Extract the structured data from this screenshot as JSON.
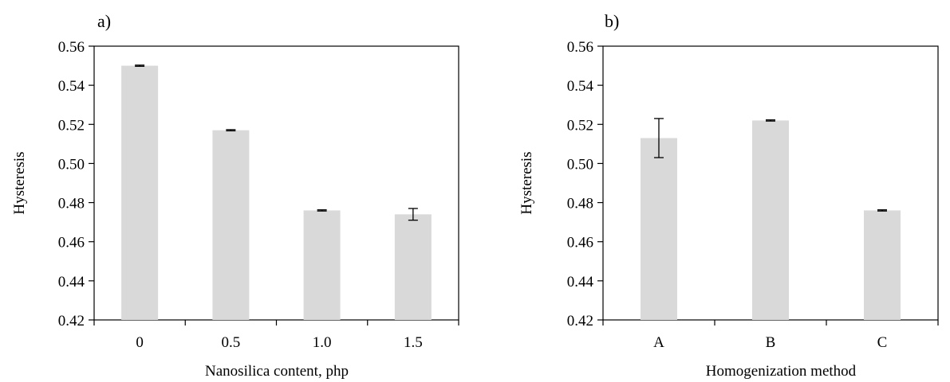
{
  "chart_data": [
    {
      "type": "bar",
      "panel_label": "a)",
      "categories": [
        "0",
        "0.5",
        "1.0",
        "1.5"
      ],
      "values": [
        0.55,
        0.517,
        0.476,
        0.474
      ],
      "errors": [
        0.0003,
        0.0003,
        0.0003,
        0.003
      ],
      "xlabel": "Nanosilica content, php",
      "ylabel": "Hysteresis",
      "ylim": [
        0.42,
        0.56
      ],
      "yticks": [
        "0.42",
        "0.44",
        "0.46",
        "0.48",
        "0.50",
        "0.52",
        "0.54",
        "0.56"
      ],
      "bar_color": "#d9d9d9",
      "grid": false
    },
    {
      "type": "bar",
      "panel_label": "b)",
      "categories": [
        "A",
        "B",
        "C"
      ],
      "values": [
        0.513,
        0.522,
        0.476
      ],
      "errors": [
        0.01,
        0.0003,
        0.0003
      ],
      "xlabel": "Homogenization method",
      "ylabel": "Hysteresis",
      "ylim": [
        0.42,
        0.56
      ],
      "yticks": [
        "0.42",
        "0.44",
        "0.46",
        "0.48",
        "0.50",
        "0.52",
        "0.54",
        "0.56"
      ],
      "bar_color": "#d9d9d9",
      "grid": false
    }
  ]
}
